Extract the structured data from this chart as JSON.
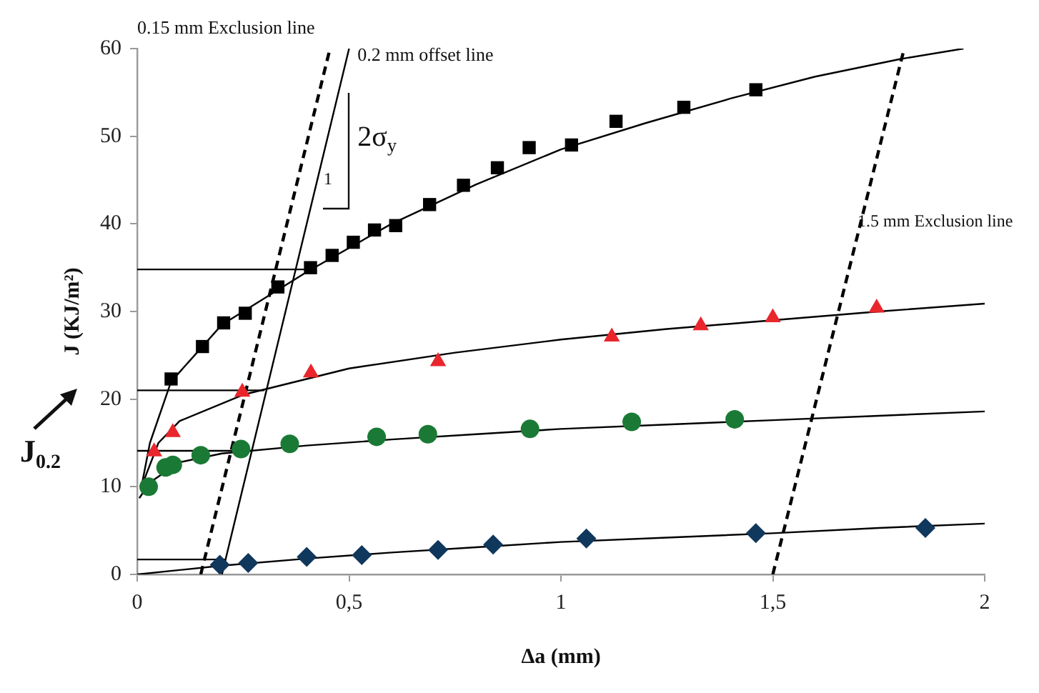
{
  "chart_data": {
    "type": "scatter",
    "xlabel": "Δa (mm)",
    "ylabel": "J (KJ/m²)",
    "xlim": [
      0,
      2
    ],
    "xticks": [
      0,
      {
        "value": 0.5,
        "label": "0,5"
      },
      1,
      {
        "value": 1.5,
        "label": "1,5"
      },
      2
    ],
    "ylim": [
      0,
      60
    ],
    "yticks": [
      0,
      10,
      20,
      30,
      40,
      50,
      60
    ],
    "grid": false,
    "legend": false,
    "series": [
      {
        "type": "scatter",
        "marker": "square",
        "color": "#000000",
        "x": [
          0.08,
          0.154,
          0.204,
          0.255,
          0.332,
          0.409,
          0.46,
          0.51,
          0.56,
          0.61,
          0.69,
          0.77,
          0.85,
          0.925,
          1.025,
          1.13,
          1.29,
          1.46
        ],
        "values": [
          22.3,
          26.0,
          28.7,
          29.8,
          32.8,
          35.0,
          36.4,
          37.9,
          39.3,
          39.8,
          42.2,
          44.4,
          46.4,
          48.7,
          49.0,
          51.7,
          53.3,
          55.3
        ]
      },
      {
        "type": "scatter",
        "marker": "triangle",
        "color": "#e8262c",
        "x": [
          0.04,
          0.084,
          0.248,
          0.41,
          0.71,
          1.12,
          1.33,
          1.5,
          1.745
        ],
        "values": [
          14.0,
          16.2,
          20.8,
          23.0,
          24.3,
          27.1,
          28.4,
          29.3,
          30.4
        ]
      },
      {
        "type": "scatter",
        "marker": "circle",
        "color": "#1a7a35",
        "x": [
          0.027,
          0.067,
          0.084,
          0.15,
          0.245,
          0.36,
          0.565,
          0.686,
          0.927,
          1.167,
          1.41
        ],
        "values": [
          10.0,
          12.2,
          12.5,
          13.6,
          14.3,
          14.9,
          15.7,
          16.0,
          16.6,
          17.4,
          17.7
        ]
      },
      {
        "type": "scatter",
        "marker": "diamond",
        "color": "#10375c",
        "x": [
          0.195,
          0.262,
          0.4,
          0.53,
          0.71,
          0.84,
          1.06,
          1.46,
          1.86
        ],
        "values": [
          1.1,
          1.3,
          2.0,
          2.2,
          2.8,
          3.4,
          4.1,
          4.7,
          5.3
        ]
      },
      {
        "type": "line",
        "marker": "none",
        "line_style": "solid",
        "color": "#000000",
        "x": [
          0.01,
          0.03,
          0.08,
          0.2,
          0.4,
          0.6,
          0.8,
          1.0,
          1.2,
          1.4,
          1.6,
          1.8,
          1.95
        ],
        "values": [
          10,
          15,
          22,
          28.5,
          34.5,
          40,
          44.5,
          48.5,
          51.5,
          54.3,
          56.8,
          58.8,
          60
        ]
      },
      {
        "type": "line",
        "marker": "none",
        "line_style": "solid",
        "color": "#000000",
        "x": [
          0.01,
          0.05,
          0.1,
          0.25,
          0.5,
          0.75,
          1.0,
          1.25,
          1.5,
          1.75,
          2
        ],
        "values": [
          10,
          15,
          17.5,
          20.5,
          23.5,
          25.3,
          26.8,
          28,
          29,
          30,
          30.9
        ]
      },
      {
        "type": "line",
        "marker": "none",
        "line_style": "solid",
        "color": "#000000",
        "x": [
          0.005,
          0.03,
          0.1,
          0.2,
          0.4,
          0.6,
          0.8,
          1.0,
          1.25,
          1.5,
          1.75,
          2
        ],
        "values": [
          8.7,
          10.5,
          12.8,
          13.8,
          14.7,
          15.4,
          16,
          16.6,
          17.1,
          17.6,
          18.1,
          18.6
        ]
      },
      {
        "type": "line",
        "marker": "none",
        "line_style": "solid",
        "color": "#000000",
        "x": [
          0,
          0.2,
          0.4,
          0.6,
          0.8,
          1.0,
          1.25,
          1.5,
          1.75,
          2
        ],
        "values": [
          0,
          1.0,
          1.8,
          2.5,
          3.1,
          3.7,
          4.2,
          4.7,
          5.3,
          5.8
        ]
      },
      {
        "type": "line",
        "marker": "none",
        "line_style": "dashed",
        "color": "#000000",
        "x": [
          0.15,
          0.455
        ],
        "values": [
          0,
          60
        ]
      },
      {
        "type": "line",
        "marker": "none",
        "line_style": "solid",
        "color": "#000000",
        "x": [
          0.2,
          0.5
        ],
        "values": [
          0,
          60
        ]
      },
      {
        "type": "line",
        "marker": "none",
        "line_style": "dashed",
        "color": "#000000",
        "x": [
          1.5,
          1.81
        ],
        "values": [
          0,
          60
        ]
      },
      {
        "type": "line",
        "marker": "none",
        "line_style": "solid",
        "color": "#000000",
        "x": [
          0,
          0.4
        ],
        "values": [
          34.8,
          34.8
        ]
      },
      {
        "type": "line",
        "marker": "none",
        "line_style": "solid",
        "color": "#000000",
        "x": [
          0,
          0.3
        ],
        "values": [
          21,
          21
        ]
      },
      {
        "type": "line",
        "marker": "none",
        "line_style": "solid",
        "color": "#000000",
        "x": [
          0,
          0.27
        ],
        "values": [
          14.1,
          14.1
        ]
      },
      {
        "type": "line",
        "marker": "none",
        "line_style": "solid",
        "color": "#000000",
        "x": [
          0,
          0.21
        ],
        "values": [
          1.7,
          1.7
        ]
      }
    ],
    "annotations": [
      "0.15 mm Exclusion line",
      "0.2 mm offset line",
      "2σ$_{y}$",
      {
        "text": "1",
        "x": 0.44,
        "y": 45
      },
      "1.5 mm Exclusion line",
      "J$_{0.2}$"
    ]
  }
}
